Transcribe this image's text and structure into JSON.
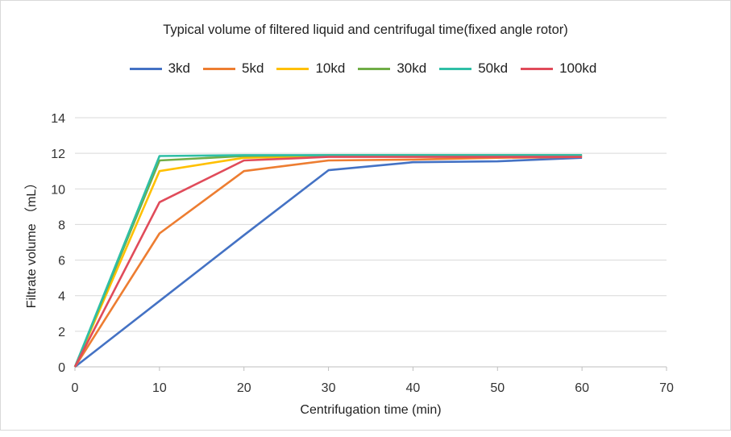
{
  "chart_data": {
    "type": "line",
    "title": "Typical volume of filtered liquid and centrifugal time(fixed angle rotor)",
    "xlabel": "Centrifugation time (min)",
    "ylabel": "Filtrate volume  （mL）",
    "xlim": [
      0,
      70
    ],
    "ylim": [
      0,
      14
    ],
    "x_ticks": [
      "0",
      "10",
      "20",
      "30",
      "40",
      "50",
      "60",
      "70"
    ],
    "y_ticks": [
      "0",
      "2",
      "4",
      "6",
      "8",
      "10",
      "12",
      "14"
    ],
    "grid": "horizontal",
    "legend": "top",
    "series": [
      {
        "name": "3kd",
        "color": "#4472c4",
        "x": [
          0,
          10,
          20,
          30,
          40,
          50,
          60
        ],
        "values": [
          0,
          3.7,
          7.4,
          11.05,
          11.5,
          11.55,
          11.75
        ]
      },
      {
        "name": "5kd",
        "color": "#ed7d31",
        "x": [
          0,
          10,
          20,
          30,
          40,
          50,
          60
        ],
        "values": [
          0,
          7.5,
          11.0,
          11.6,
          11.65,
          11.75,
          11.8
        ]
      },
      {
        "name": "10kd",
        "color": "#ffc000",
        "x": [
          0,
          10,
          20,
          30,
          40,
          50,
          60
        ],
        "values": [
          0,
          11.0,
          11.75,
          11.85,
          11.85,
          11.85,
          11.85
        ]
      },
      {
        "name": "30kd",
        "color": "#70ad47",
        "x": [
          0,
          10,
          20,
          30,
          40,
          50,
          60
        ],
        "values": [
          0,
          11.6,
          11.85,
          11.9,
          11.9,
          11.9,
          11.9
        ]
      },
      {
        "name": "50kd",
        "color": "#2fbfa6",
        "x": [
          0,
          10,
          20,
          30,
          40,
          50,
          60
        ],
        "values": [
          0,
          11.85,
          11.9,
          11.9,
          11.9,
          11.9,
          11.9
        ]
      },
      {
        "name": "100kd",
        "color": "#e04b5a",
        "x": [
          0,
          10,
          20,
          30,
          40,
          50,
          60
        ],
        "values": [
          0,
          9.25,
          11.6,
          11.8,
          11.8,
          11.8,
          11.8
        ]
      }
    ]
  }
}
